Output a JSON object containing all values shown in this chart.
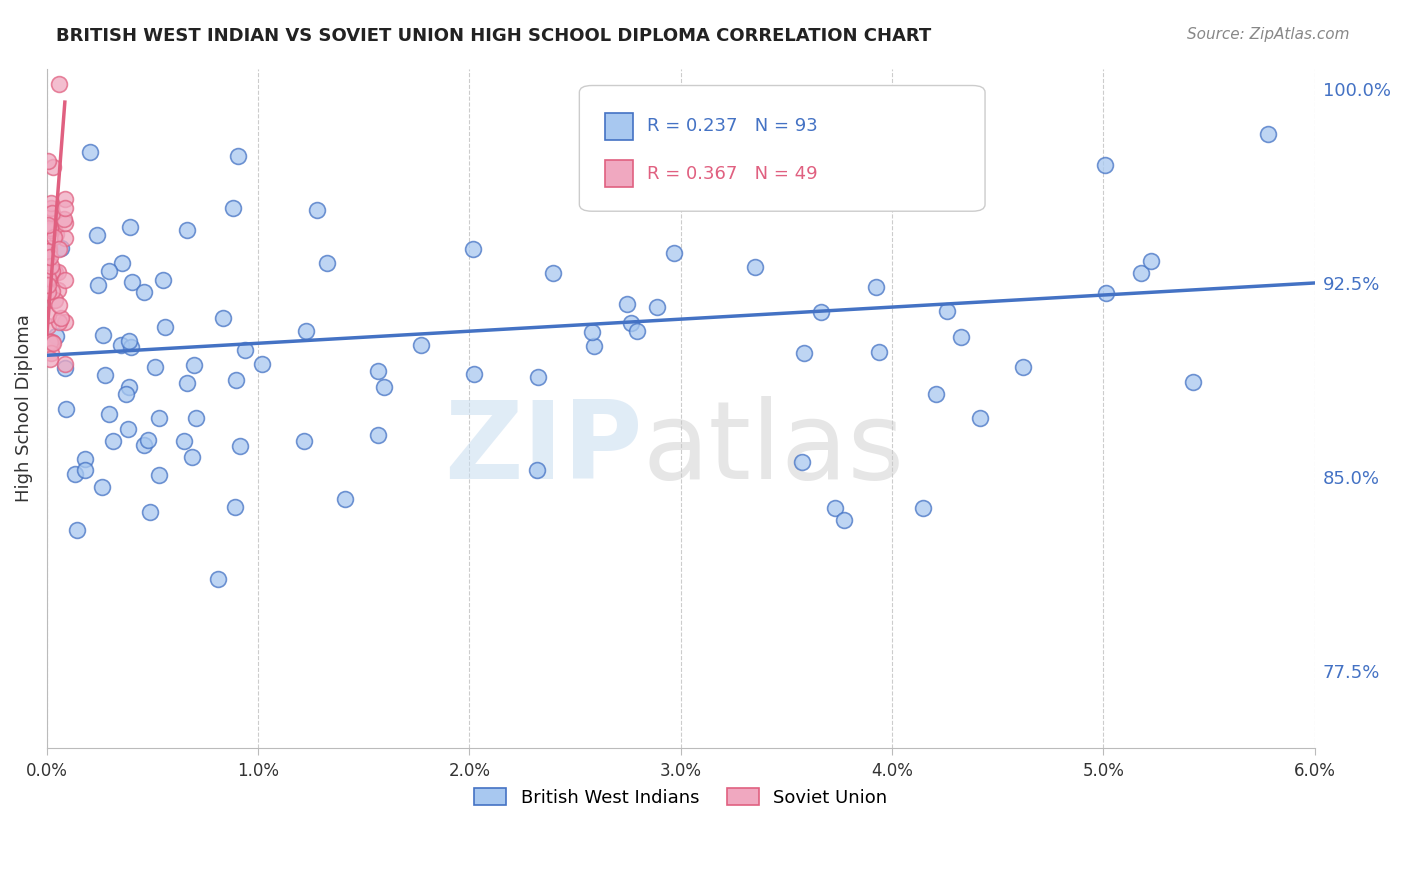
{
  "title": "BRITISH WEST INDIAN VS SOVIET UNION HIGH SCHOOL DIPLOMA CORRELATION CHART",
  "source": "Source: ZipAtlas.com",
  "ylabel": "High School Diploma",
  "ytick_vals": [
    0.775,
    0.85,
    0.925,
    1.0
  ],
  "ytick_labels": [
    "77.5%",
    "85.0%",
    "92.5%",
    "100.0%"
  ],
  "blue_color": "#a8c8f0",
  "blue_line_color": "#4472c4",
  "pink_color": "#f0a8c0",
  "pink_line_color": "#e06080",
  "blue_R": 0.237,
  "blue_N": 93,
  "pink_R": 0.367,
  "pink_N": 49,
  "blue_label": "British West Indians",
  "pink_label": "Soviet Union",
  "background_color": "#ffffff",
  "xmin": 0.0,
  "xmax": 0.06,
  "ymin": 0.745,
  "ymax": 1.008,
  "blue_trend_x": [
    0.0,
    0.06
  ],
  "blue_trend_y": [
    0.897,
    0.925
  ],
  "pink_trend_x": [
    0.0,
    0.00085
  ],
  "pink_trend_y": [
    0.905,
    0.995
  ]
}
